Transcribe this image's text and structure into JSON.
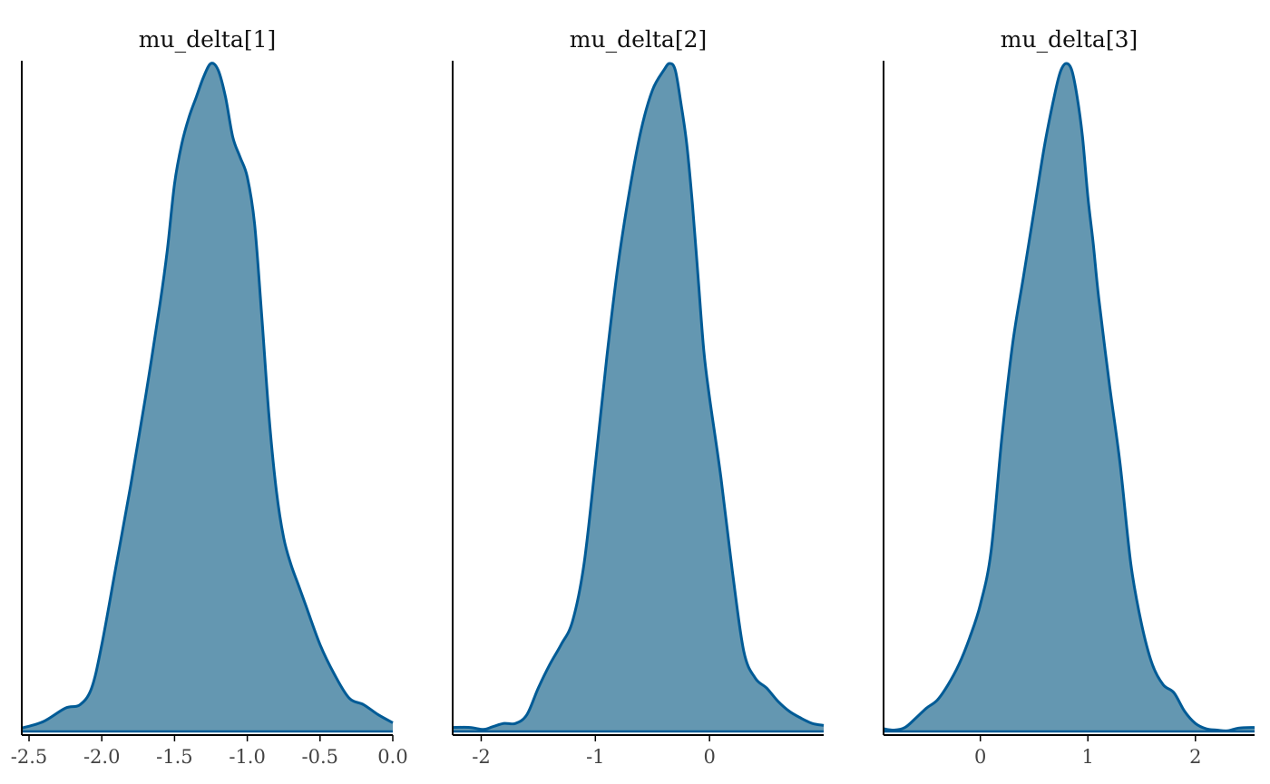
{
  "colors": {
    "fill": "#6497b1",
    "line": "#005b96",
    "axis": "#000000"
  },
  "chart_data": [
    {
      "type": "area",
      "title": "mu_delta[1]",
      "xlim": [
        -2.55,
        0.0
      ],
      "ylim": [
        0,
        1
      ],
      "xticks": [
        -2.5,
        -2.0,
        -1.5,
        -1.0,
        -0.5,
        0.0
      ],
      "xtick_labels": [
        "-2.5",
        "-2.0",
        "-1.5",
        "-1.0",
        "-0.5",
        "0.0"
      ],
      "x": [
        -2.55,
        -2.4,
        -2.25,
        -2.15,
        -2.07,
        -2.0,
        -1.9,
        -1.8,
        -1.7,
        -1.6,
        -1.55,
        -1.5,
        -1.45,
        -1.4,
        -1.35,
        -1.3,
        -1.25,
        -1.2,
        -1.15,
        -1.1,
        -1.05,
        -1.0,
        -0.95,
        -0.9,
        -0.85,
        -0.8,
        -0.75,
        -0.7,
        -0.65,
        -0.6,
        -0.5,
        -0.4,
        -0.3,
        -0.2,
        -0.1,
        0.0
      ],
      "density": [
        0.005,
        0.015,
        0.035,
        0.04,
        0.065,
        0.13,
        0.25,
        0.37,
        0.5,
        0.64,
        0.72,
        0.82,
        0.88,
        0.92,
        0.95,
        0.98,
        1.0,
        0.99,
        0.95,
        0.89,
        0.86,
        0.83,
        0.76,
        0.62,
        0.47,
        0.36,
        0.29,
        0.25,
        0.22,
        0.19,
        0.13,
        0.085,
        0.05,
        0.04,
        0.025,
        0.013
      ]
    },
    {
      "type": "area",
      "title": "mu_delta[2]",
      "xlim": [
        -2.25,
        1.0
      ],
      "ylim": [
        0,
        1
      ],
      "xticks": [
        -2,
        -1,
        0
      ],
      "xtick_labels": [
        "-2",
        "-1",
        "0"
      ],
      "x": [
        -2.25,
        -2.1,
        -1.98,
        -1.9,
        -1.8,
        -1.7,
        -1.6,
        -1.5,
        -1.4,
        -1.3,
        -1.2,
        -1.1,
        -1.0,
        -0.9,
        -0.8,
        -0.7,
        -0.6,
        -0.5,
        -0.4,
        -0.35,
        -0.3,
        -0.25,
        -0.2,
        -0.15,
        -0.1,
        -0.05,
        0.0,
        0.1,
        0.2,
        0.3,
        0.4,
        0.5,
        0.6,
        0.7,
        0.8,
        0.9,
        1.0
      ],
      "density": [
        0.006,
        0.006,
        0.003,
        0.007,
        0.012,
        0.012,
        0.025,
        0.065,
        0.1,
        0.13,
        0.165,
        0.25,
        0.4,
        0.56,
        0.7,
        0.81,
        0.9,
        0.96,
        0.99,
        1.0,
        0.99,
        0.94,
        0.88,
        0.79,
        0.68,
        0.57,
        0.5,
        0.38,
        0.24,
        0.12,
        0.08,
        0.065,
        0.045,
        0.03,
        0.02,
        0.012,
        0.009
      ]
    },
    {
      "type": "area",
      "title": "mu_delta[3]",
      "xlim": [
        -0.9,
        2.55
      ],
      "ylim": [
        0,
        1
      ],
      "xticks": [
        0,
        1,
        2
      ],
      "xtick_labels": [
        "0",
        "1",
        "2"
      ],
      "x": [
        -0.9,
        -0.8,
        -0.7,
        -0.6,
        -0.5,
        -0.4,
        -0.3,
        -0.2,
        -0.1,
        0.0,
        0.1,
        0.2,
        0.3,
        0.4,
        0.5,
        0.6,
        0.7,
        0.75,
        0.8,
        0.85,
        0.9,
        0.95,
        1.0,
        1.05,
        1.1,
        1.2,
        1.3,
        1.4,
        1.5,
        1.6,
        1.7,
        1.8,
        1.9,
        2.0,
        2.1,
        2.2,
        2.3,
        2.4,
        2.55
      ],
      "density": [
        0.004,
        0.002,
        0.006,
        0.02,
        0.035,
        0.047,
        0.07,
        0.1,
        0.14,
        0.19,
        0.27,
        0.44,
        0.58,
        0.68,
        0.78,
        0.88,
        0.96,
        0.99,
        1.0,
        0.99,
        0.95,
        0.89,
        0.8,
        0.73,
        0.65,
        0.52,
        0.4,
        0.25,
        0.16,
        0.1,
        0.07,
        0.058,
        0.03,
        0.012,
        0.004,
        0.002,
        0.001,
        0.005,
        0.006
      ]
    }
  ]
}
